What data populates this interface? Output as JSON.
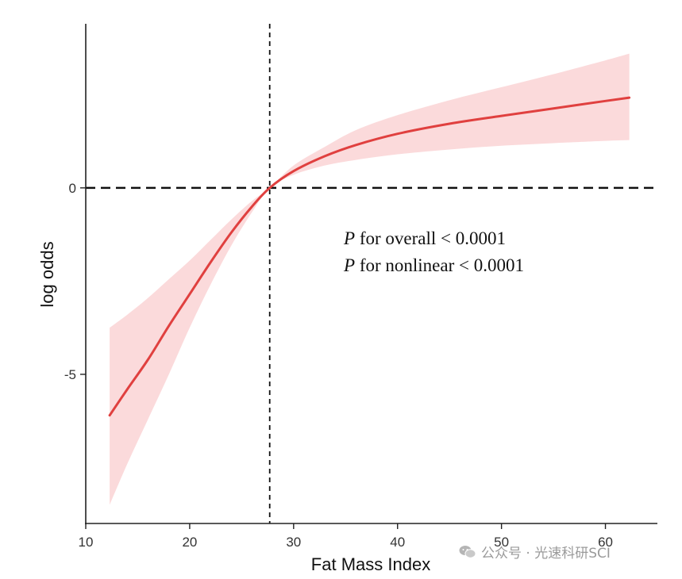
{
  "chart_data": {
    "type": "line",
    "xlabel": "Fat Mass Index",
    "ylabel": "log odds",
    "xlim": [
      10,
      65
    ],
    "ylim": [
      -9,
      4.4
    ],
    "x_ticks": [
      10,
      20,
      30,
      40,
      50,
      60
    ],
    "y_ticks": [
      -5,
      0
    ],
    "x_tick_labels": [
      "10",
      "20",
      "30",
      "40",
      "50",
      "60"
    ],
    "y_tick_labels": [
      "-5",
      "0"
    ],
    "reference_lines": {
      "x": 27.7,
      "y": 0
    },
    "series": [
      {
        "x": [
          12.3,
          14,
          16,
          18,
          20,
          22,
          24,
          26,
          27.7,
          30,
          33,
          36,
          40,
          45,
          50,
          55,
          60,
          62.3
        ],
        "y": [
          -6.1,
          -5.4,
          -4.6,
          -3.7,
          -2.85,
          -2.0,
          -1.2,
          -0.5,
          0,
          0.45,
          0.85,
          1.15,
          1.45,
          1.72,
          1.93,
          2.13,
          2.33,
          2.42
        ],
        "lower": [
          -8.5,
          -7.4,
          -6.2,
          -5.0,
          -3.75,
          -2.6,
          -1.55,
          -0.65,
          0,
          0.35,
          0.6,
          0.75,
          0.9,
          1.03,
          1.13,
          1.2,
          1.26,
          1.28
        ],
        "upper": [
          -3.75,
          -3.4,
          -2.95,
          -2.45,
          -1.95,
          -1.4,
          -0.85,
          -0.35,
          0,
          0.6,
          1.1,
          1.55,
          1.95,
          2.35,
          2.7,
          3.05,
          3.42,
          3.6
        ]
      }
    ],
    "colors": {
      "line": "#e0403f",
      "band": "#fbdadb",
      "axis": "#222222"
    },
    "annotations": [
      {
        "italic": "P",
        "text": " for overall < 0.0001"
      },
      {
        "italic": "P",
        "text": " for nonlinear < 0.0001"
      }
    ],
    "grid": false
  },
  "watermark": {
    "text": "公众号 · 光速科研SCI",
    "icon": "wechat-icon"
  }
}
